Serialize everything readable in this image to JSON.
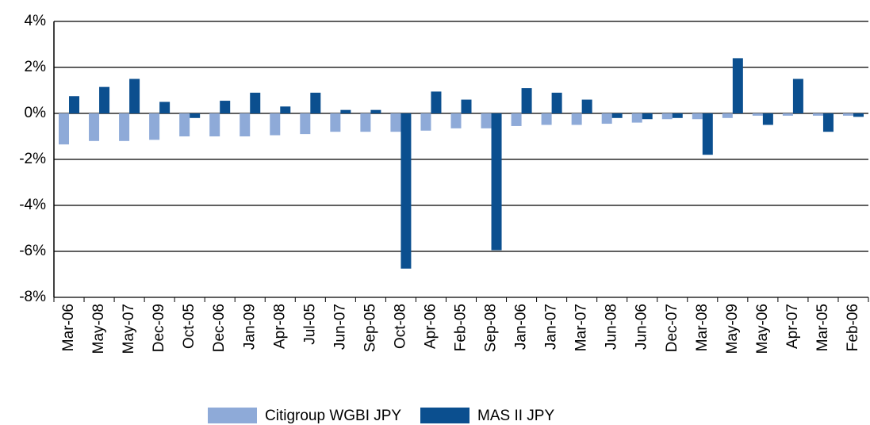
{
  "chart_data": {
    "type": "bar",
    "categories": [
      "Mar-06",
      "May-08",
      "May-07",
      "Dec-09",
      "Oct-05",
      "Dec-06",
      "Jan-09",
      "Apr-08",
      "Jul-05",
      "Jun-07",
      "Sep-05",
      "Oct-08",
      "Apr-06",
      "Feb-05",
      "Sep-08",
      "Jan-06",
      "Jan-07",
      "Mar-07",
      "Jun-08",
      "Jun-06",
      "Dec-07",
      "Mar-08",
      "May-09",
      "May-06",
      "Apr-07",
      "Mar-05",
      "Feb-06"
    ],
    "series": [
      {
        "name": "Citigroup WGBI JPY",
        "color": "#8eaad8",
        "values": [
          -1.35,
          -1.2,
          -1.2,
          -1.15,
          -1.0,
          -1.0,
          -1.0,
          -0.95,
          -0.9,
          -0.8,
          -0.8,
          -0.8,
          -0.75,
          -0.65,
          -0.65,
          -0.55,
          -0.5,
          -0.5,
          -0.45,
          -0.4,
          -0.25,
          -0.25,
          -0.2,
          -0.1,
          -0.1,
          -0.1,
          -0.1
        ]
      },
      {
        "name": "MAS II JPY",
        "color": "#0b4f8f",
        "values": [
          0.75,
          1.15,
          1.5,
          0.5,
          -0.2,
          0.55,
          0.9,
          0.3,
          0.9,
          0.15,
          0.15,
          -6.75,
          0.95,
          0.6,
          -5.95,
          1.1,
          0.9,
          0.6,
          -0.2,
          -0.25,
          -0.2,
          -1.8,
          2.4,
          -0.5,
          1.5,
          -0.8,
          -0.15
        ]
      }
    ],
    "ylim": [
      -8,
      4
    ],
    "yticks": [
      {
        "value": -8,
        "label": "-8%"
      },
      {
        "value": -6,
        "label": "-6%"
      },
      {
        "value": -4,
        "label": "-4%"
      },
      {
        "value": -2,
        "label": "-2%"
      },
      {
        "value": 0,
        "label": "0%"
      },
      {
        "value": 2,
        "label": "2%"
      },
      {
        "value": 4,
        "label": "4%"
      }
    ],
    "grid": true
  }
}
